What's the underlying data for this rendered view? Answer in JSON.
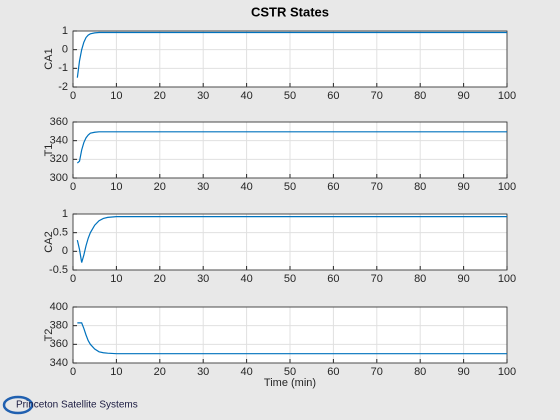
{
  "chart_data": [
    {
      "type": "line",
      "title": "CSTR States",
      "y_label": "CA1",
      "x": [
        1,
        1.5,
        2,
        2.5,
        3,
        3.5,
        4,
        5,
        6,
        8,
        10,
        20,
        100
      ],
      "series": [
        {
          "color": "#0072bd",
          "values": [
            -1.5,
            -0.6,
            0,
            0.4,
            0.65,
            0.78,
            0.85,
            0.9,
            0.92,
            0.92,
            0.92,
            0.92,
            0.92
          ]
        }
      ],
      "xlim": [
        0,
        100
      ],
      "xticks": [
        0,
        10,
        20,
        30,
        40,
        50,
        60,
        70,
        80,
        90,
        100
      ],
      "ylim": [
        -2,
        1
      ],
      "yticks": [
        -2,
        -1,
        0,
        1
      ],
      "grid": true
    },
    {
      "type": "line",
      "y_label": "T1",
      "x": [
        1,
        1.5,
        2,
        2.5,
        3,
        3.5,
        4,
        5,
        6,
        8,
        10,
        20,
        100
      ],
      "series": [
        {
          "color": "#0072bd",
          "values": [
            316,
            318,
            330,
            338,
            343,
            346,
            348,
            349,
            349.5,
            349.5,
            349.5,
            349.5,
            349.5
          ]
        }
      ],
      "xlim": [
        0,
        100
      ],
      "xticks": [
        0,
        10,
        20,
        30,
        40,
        50,
        60,
        70,
        80,
        90,
        100
      ],
      "ylim": [
        300,
        360
      ],
      "yticks": [
        300,
        320,
        340,
        360
      ],
      "grid": true
    },
    {
      "type": "line",
      "y_label": "CA2",
      "x": [
        1,
        1.5,
        2,
        2.5,
        3,
        3.5,
        4,
        5,
        6,
        7,
        8,
        10,
        20,
        100
      ],
      "series": [
        {
          "color": "#0072bd",
          "values": [
            0.3,
            0.05,
            -0.3,
            -0.1,
            0.15,
            0.35,
            0.5,
            0.7,
            0.82,
            0.88,
            0.91,
            0.93,
            0.93,
            0.93
          ]
        }
      ],
      "xlim": [
        0,
        100
      ],
      "xticks": [
        0,
        10,
        20,
        30,
        40,
        50,
        60,
        70,
        80,
        90,
        100
      ],
      "ylim": [
        -0.5,
        1
      ],
      "yticks": [
        -0.5,
        0,
        0.5,
        1
      ],
      "grid": true
    },
    {
      "type": "line",
      "y_label": "T2",
      "x_label": "Time (min)",
      "x": [
        1,
        1.5,
        2,
        2.5,
        3,
        3.5,
        4,
        5,
        6,
        7,
        8,
        10,
        20,
        100
      ],
      "series": [
        {
          "color": "#0072bd",
          "values": [
            383,
            383,
            383,
            377,
            370,
            364,
            360,
            355,
            352,
            351,
            350.5,
            350,
            350,
            350
          ]
        }
      ],
      "xlim": [
        0,
        100
      ],
      "xticks": [
        0,
        10,
        20,
        30,
        40,
        50,
        60,
        70,
        80,
        90,
        100
      ],
      "ylim": [
        340,
        400
      ],
      "yticks": [
        340,
        360,
        380,
        400
      ],
      "grid": true
    }
  ],
  "logo_text": "Princeton Satellite Systems"
}
